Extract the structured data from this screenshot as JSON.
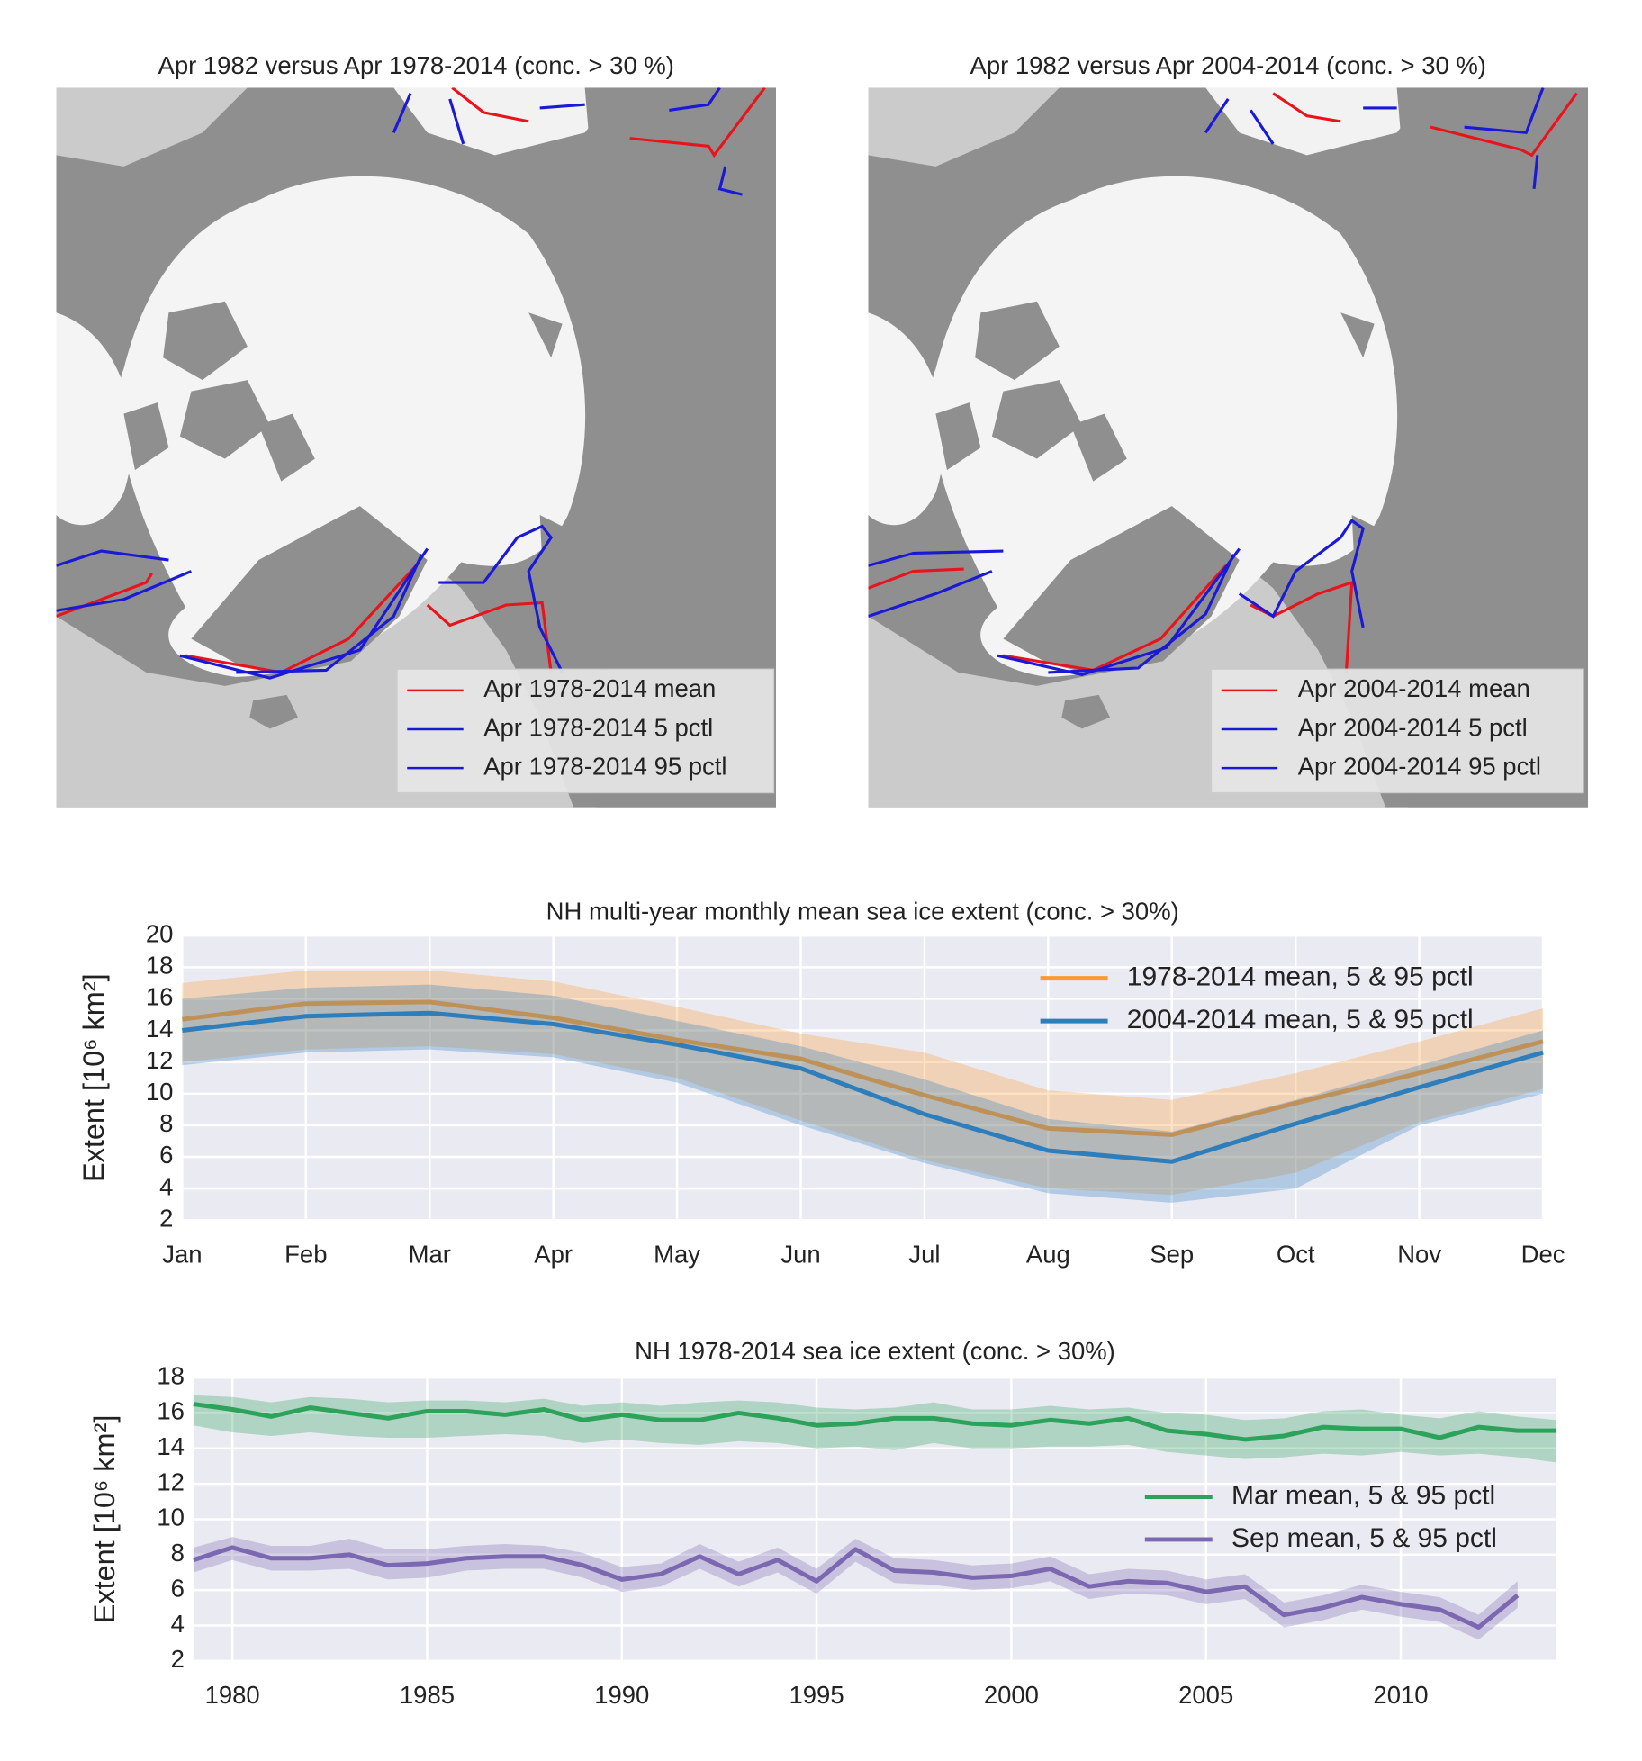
{
  "chart_data": [
    {
      "type": "map",
      "title": "Apr 1982 versus Apr 1978-2014 (conc. > 30 %)",
      "series": [
        {
          "name": "Apr 1978-2014 mean",
          "color": "#e8141c"
        },
        {
          "name": "Apr 1978-2014 5 pctl",
          "color": "#1a1ad6"
        },
        {
          "name": "Apr 1978-2014 95 pctl",
          "color": "#1a1ad6"
        }
      ]
    },
    {
      "type": "map",
      "title": "Apr 1982 versus Apr 2004-2014 (conc. > 30 %)",
      "series": [
        {
          "name": "Apr 2004-2014 mean",
          "color": "#e8141c"
        },
        {
          "name": "Apr 2004-2014 5 pctl",
          "color": "#1a1ad6"
        },
        {
          "name": "Apr 2004-2014 95 pctl",
          "color": "#1a1ad6"
        }
      ]
    },
    {
      "type": "line",
      "title": "NH multi-year monthly mean sea ice extent (conc. > 30%)",
      "y_label": "Extent [10⁶  km²]",
      "categories": [
        "Jan",
        "Feb",
        "Mar",
        "Apr",
        "May",
        "Jun",
        "Jul",
        "Aug",
        "Sep",
        "Oct",
        "Nov",
        "Dec"
      ],
      "ylim": [
        2,
        20
      ],
      "yticks": [
        2,
        4,
        6,
        8,
        10,
        12,
        14,
        16,
        18,
        20
      ],
      "grid": true,
      "series": [
        {
          "name": "1978-2014 mean, 5 & 95 pctl",
          "color": "#fd9a2f",
          "values": [
            14.7,
            15.7,
            15.8,
            14.8,
            13.4,
            12.2,
            9.9,
            7.8,
            7.4,
            9.4,
            11.3,
            13.3
          ],
          "low": [
            12.0,
            12.8,
            13.0,
            12.5,
            11.0,
            8.3,
            5.8,
            4.0,
            3.6,
            5.0,
            8.2,
            10.3
          ],
          "high": [
            17.0,
            17.8,
            17.8,
            17.1,
            15.5,
            13.8,
            12.6,
            10.2,
            9.6,
            11.3,
            13.3,
            15.4
          ]
        },
        {
          "name": "2004-2014 mean, 5 & 95 pctl",
          "color": "#2f7ebc",
          "values": [
            14.0,
            14.9,
            15.1,
            14.4,
            13.1,
            11.6,
            8.7,
            6.4,
            5.7,
            8.1,
            10.4,
            12.6
          ],
          "low": [
            11.8,
            12.6,
            12.8,
            12.3,
            10.7,
            8.0,
            5.6,
            3.7,
            3.1,
            4.0,
            8.0,
            10.0
          ],
          "high": [
            16.0,
            16.7,
            16.9,
            16.2,
            14.6,
            13.0,
            10.9,
            8.4,
            7.6,
            9.6,
            11.8,
            14.0
          ]
        }
      ]
    },
    {
      "type": "line",
      "title": "NH 1978-2014 sea ice extent (conc. > 30%)",
      "y_label": "Extent [10⁶  km²]",
      "x": [
        1979,
        1980,
        1981,
        1982,
        1983,
        1984,
        1985,
        1986,
        1987,
        1988,
        1989,
        1990,
        1991,
        1992,
        1993,
        1994,
        1995,
        1996,
        1997,
        1998,
        1999,
        2000,
        2001,
        2002,
        2003,
        2004,
        2005,
        2006,
        2007,
        2008,
        2009,
        2010,
        2011,
        2012,
        2013,
        2014
      ],
      "xlim": [
        1979,
        2014
      ],
      "xticks": [
        1980,
        1985,
        1990,
        1995,
        2000,
        2005,
        2010
      ],
      "ylim": [
        2,
        18
      ],
      "yticks": [
        2,
        4,
        6,
        8,
        10,
        12,
        14,
        16,
        18
      ],
      "grid": true,
      "series": [
        {
          "name": "Mar mean, 5 & 95 pctl",
          "color": "#2ca25a",
          "values": [
            16.5,
            16.2,
            15.8,
            16.3,
            16.0,
            15.7,
            16.1,
            16.1,
            15.9,
            16.2,
            15.6,
            15.9,
            15.6,
            15.6,
            16.0,
            15.7,
            15.3,
            15.4,
            15.7,
            15.7,
            15.4,
            15.3,
            15.6,
            15.4,
            15.7,
            15.0,
            14.8,
            14.5,
            14.7,
            15.2,
            15.1,
            15.1,
            14.6,
            15.2,
            15.0,
            15.0
          ],
          "low": [
            15.3,
            14.9,
            14.7,
            14.9,
            14.7,
            14.6,
            14.6,
            14.7,
            14.8,
            14.7,
            14.3,
            14.5,
            14.3,
            14.2,
            14.4,
            14.3,
            14.0,
            14.1,
            13.9,
            14.3,
            14.0,
            14.0,
            14.1,
            14.1,
            14.2,
            13.8,
            13.6,
            13.4,
            13.5,
            13.7,
            13.6,
            13.8,
            13.6,
            13.7,
            13.5,
            13.2
          ],
          "high": [
            17.0,
            16.9,
            16.6,
            16.9,
            16.8,
            16.6,
            16.7,
            16.7,
            16.6,
            16.8,
            16.4,
            16.6,
            16.4,
            16.6,
            16.7,
            16.6,
            16.3,
            16.2,
            16.3,
            16.6,
            16.2,
            16.2,
            16.4,
            16.2,
            16.3,
            16.0,
            15.9,
            15.6,
            15.7,
            16.1,
            16.2,
            15.9,
            15.7,
            16.1,
            15.8,
            15.6
          ]
        },
        {
          "name": "Sep mean, 5 & 95 pctl",
          "color": "#7b68b0",
          "values": [
            7.7,
            8.4,
            7.8,
            7.8,
            8.0,
            7.4,
            7.5,
            7.8,
            7.9,
            7.9,
            7.4,
            6.6,
            6.9,
            7.9,
            6.9,
            7.7,
            6.5,
            8.3,
            7.1,
            7.0,
            6.7,
            6.8,
            7.2,
            6.2,
            6.5,
            6.4,
            5.9,
            6.2,
            4.6,
            5.0,
            5.6,
            5.2,
            4.9,
            3.9,
            5.7,
            null
          ],
          "low": [
            7.0,
            7.7,
            7.1,
            7.1,
            7.2,
            6.6,
            6.7,
            7.1,
            7.2,
            7.2,
            6.7,
            5.9,
            6.2,
            7.2,
            6.2,
            7.0,
            5.8,
            7.6,
            6.4,
            6.3,
            6.0,
            6.1,
            6.5,
            5.5,
            5.8,
            5.7,
            5.2,
            5.5,
            3.9,
            4.3,
            4.9,
            4.5,
            4.2,
            3.2,
            5.0,
            null
          ],
          "high": [
            8.4,
            9.0,
            8.5,
            8.5,
            8.9,
            8.3,
            8.3,
            8.5,
            8.6,
            8.5,
            8.1,
            7.3,
            7.5,
            8.6,
            7.6,
            8.4,
            7.2,
            8.9,
            7.8,
            7.7,
            7.4,
            7.5,
            7.9,
            6.9,
            7.2,
            7.1,
            6.6,
            6.9,
            5.3,
            5.7,
            6.3,
            5.9,
            5.6,
            4.6,
            6.5,
            null
          ]
        }
      ]
    }
  ]
}
